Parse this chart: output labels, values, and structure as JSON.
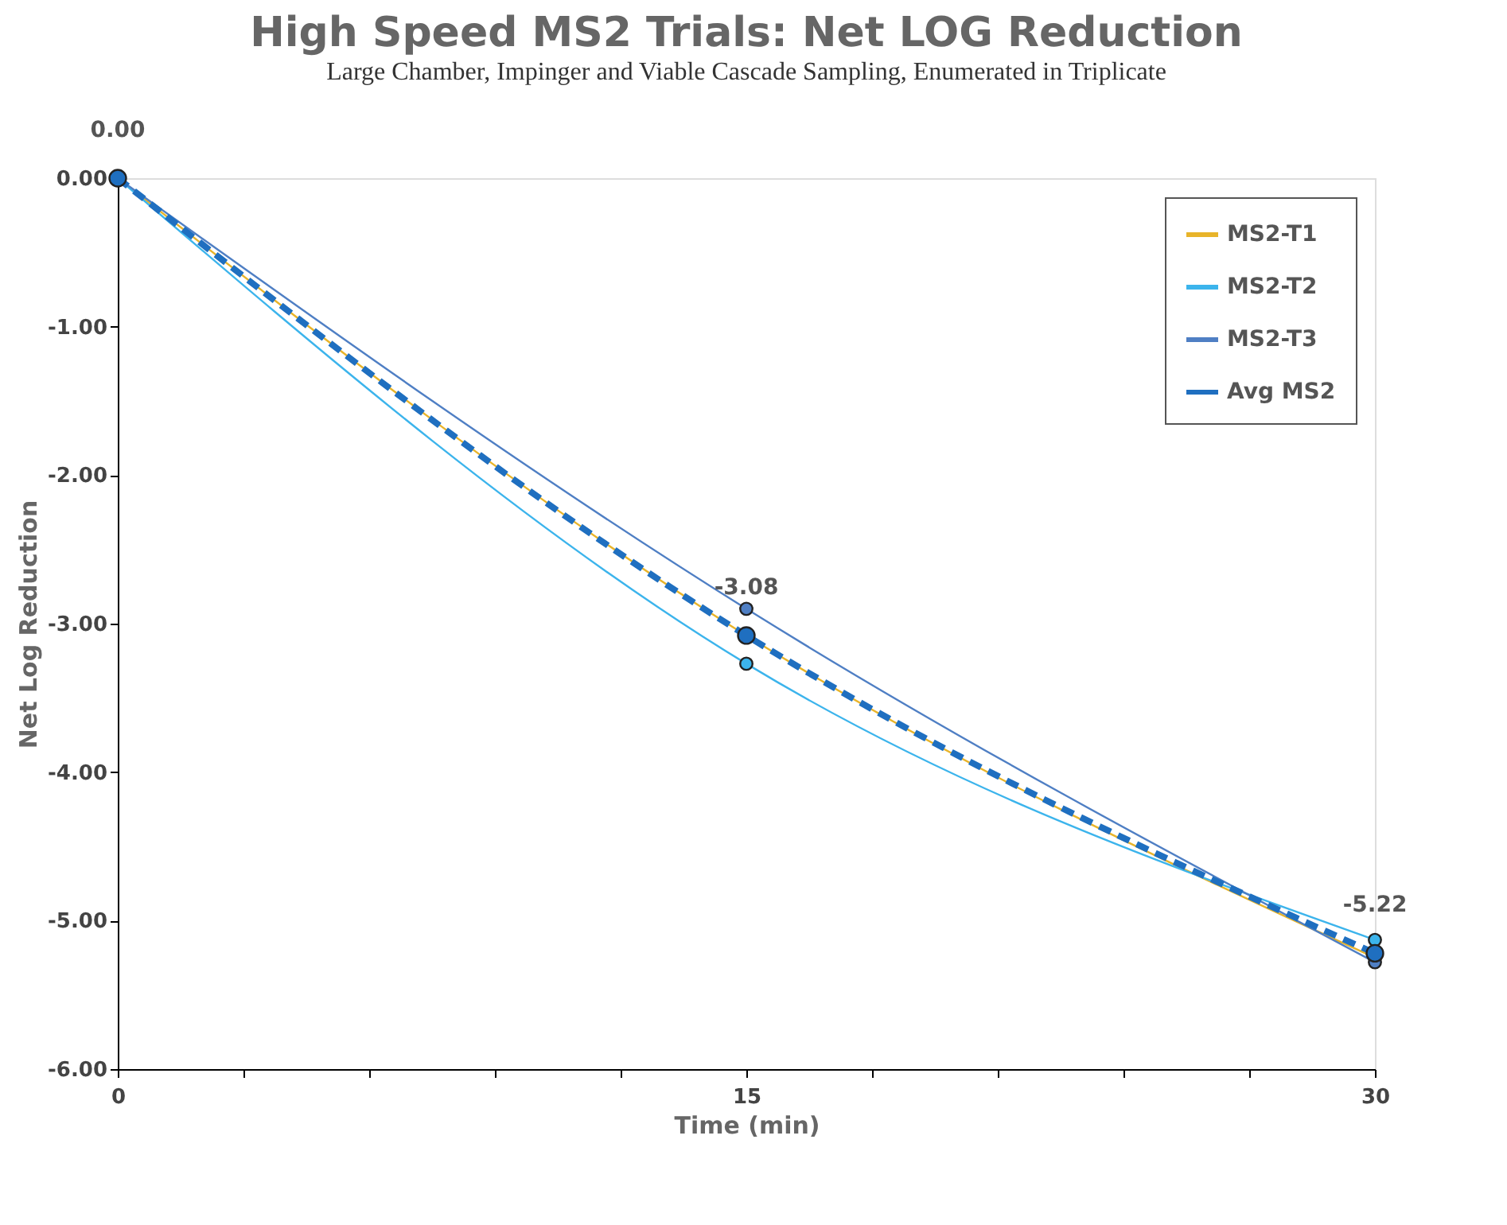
{
  "chart_data": {
    "type": "line",
    "title": "High Speed MS2 Trials: Net LOG Reduction",
    "subtitle": "Large Chamber, Impinger and Viable Cascade Sampling, Enumerated in Triplicate",
    "xlabel": "Time (min)",
    "ylabel": "Net Log Reduction",
    "x": [
      0,
      15,
      30
    ],
    "series": [
      {
        "name": "MS2-T1",
        "color": "#e8b42a",
        "values": [
          0,
          -3.08,
          -5.25
        ],
        "line_style": "solid"
      },
      {
        "name": "MS2-T2",
        "color": "#3cb4ec",
        "values": [
          0,
          -3.27,
          -5.13
        ],
        "line_style": "solid"
      },
      {
        "name": "MS2-T3",
        "color": "#4f7fc4",
        "values": [
          0,
          -2.9,
          -5.28
        ],
        "line_style": "solid"
      },
      {
        "name": "Avg MS2",
        "color": "#1f6fc0",
        "values": [
          0,
          -3.08,
          -5.22
        ],
        "line_style": "dashed",
        "value_labels": [
          "0.00",
          "-3.08",
          "-5.22"
        ]
      }
    ],
    "xlim": [
      0,
      30
    ],
    "xticks": [
      0,
      {
        "value": 3,
        "label": null
      },
      {
        "value": 6,
        "label": null
      },
      {
        "value": 9,
        "label": null
      },
      {
        "value": 12,
        "label": null
      },
      15,
      {
        "value": 18,
        "label": null
      },
      {
        "value": 21,
        "label": null
      },
      {
        "value": 24,
        "label": null
      },
      {
        "value": 27,
        "label": null
      },
      30
    ],
    "ylim": [
      -6,
      0
    ],
    "yticks": [
      {
        "value": -6,
        "label": "-6.00"
      },
      {
        "value": -5,
        "label": "-5.00"
      },
      {
        "value": -4,
        "label": "-4.00"
      },
      {
        "value": -3,
        "label": "-3.00"
      },
      {
        "value": -2,
        "label": "-2.00"
      },
      {
        "value": -1,
        "label": "-1.00"
      },
      {
        "value": 0,
        "label": "0.00"
      }
    ],
    "grid": false,
    "legend": "top right",
    "marker": "circle"
  }
}
